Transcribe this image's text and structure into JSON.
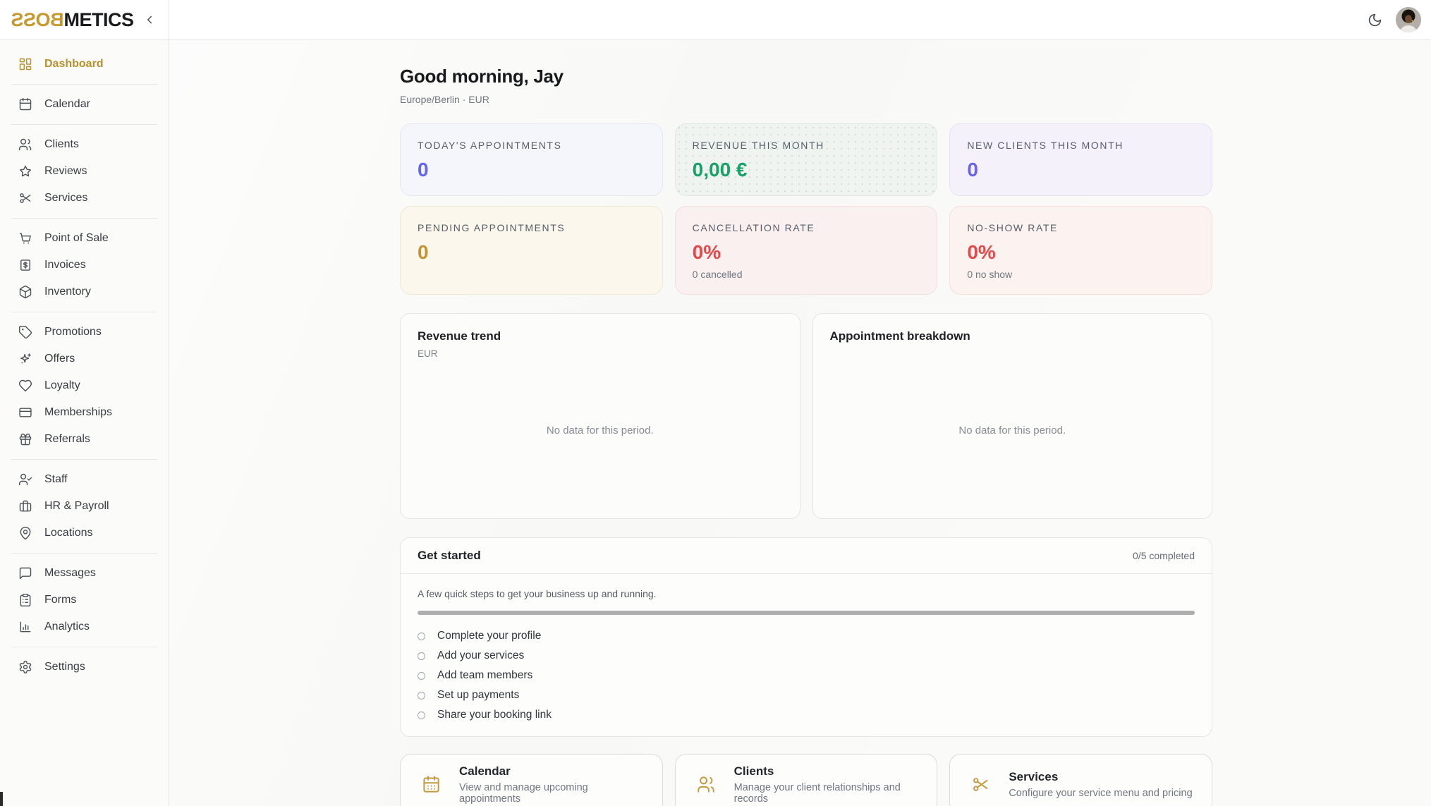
{
  "brand": {
    "gold": "BOSS",
    "dark": "METICS"
  },
  "sidebar": {
    "groups": [
      {
        "items": [
          {
            "label": "Dashboard",
            "active": true
          }
        ]
      },
      {
        "items": [
          {
            "label": "Calendar"
          }
        ]
      },
      {
        "items": [
          {
            "label": "Clients"
          },
          {
            "label": "Reviews"
          },
          {
            "label": "Services"
          }
        ]
      },
      {
        "items": [
          {
            "label": "Point of Sale"
          },
          {
            "label": "Invoices"
          },
          {
            "label": "Inventory"
          }
        ]
      },
      {
        "items": [
          {
            "label": "Promotions"
          },
          {
            "label": "Offers"
          },
          {
            "label": "Loyalty"
          },
          {
            "label": "Memberships"
          },
          {
            "label": "Referrals"
          }
        ]
      },
      {
        "items": [
          {
            "label": "Staff"
          },
          {
            "label": "HR & Payroll"
          },
          {
            "label": "Locations"
          }
        ]
      },
      {
        "items": [
          {
            "label": "Messages"
          },
          {
            "label": "Forms"
          },
          {
            "label": "Analytics"
          }
        ]
      },
      {
        "items": [
          {
            "label": "Settings"
          }
        ]
      }
    ]
  },
  "header": {
    "greeting": "Good morning, Jay",
    "meta": "Europe/Berlin · EUR"
  },
  "stats": [
    {
      "label": "TODAY'S APPOINTMENTS",
      "value": "0"
    },
    {
      "label": "REVENUE THIS MONTH",
      "value": "0,00 €"
    },
    {
      "label": "NEW CLIENTS THIS MONTH",
      "value": "0"
    },
    {
      "label": "PENDING APPOINTMENTS",
      "value": "0"
    },
    {
      "label": "CANCELLATION RATE",
      "value": "0%",
      "sub": "0 cancelled"
    },
    {
      "label": "NO-SHOW RATE",
      "value": "0%",
      "sub": "0 no show"
    }
  ],
  "charts": [
    {
      "title": "Revenue trend",
      "subtitle": "EUR",
      "empty_text": "No data for this period."
    },
    {
      "title": "Appointment breakdown",
      "empty_text": "No data for this period."
    }
  ],
  "get_started": {
    "title": "Get started",
    "progress_label": "0/5 completed",
    "progress_percent": 0,
    "description": "A few quick steps to get your business up and running.",
    "steps": [
      "Complete your profile",
      "Add your services",
      "Add team members",
      "Set up payments",
      "Share your booking link"
    ]
  },
  "quick_links": [
    {
      "title": "Calendar",
      "description": "View and manage upcoming appointments"
    },
    {
      "title": "Clients",
      "description": "Manage your client relationships and records"
    },
    {
      "title": "Services",
      "description": "Configure your service menu and pricing"
    }
  ],
  "icons": {
    "topbar": [
      "moon-icon",
      "avatar"
    ],
    "sidebar": [
      "dashboard-grid-icon",
      "calendar-icon",
      "users-icon",
      "star-icon",
      "scissors-icon",
      "cart-icon",
      "invoice-icon",
      "package-icon",
      "tag-icon",
      "sparkles-icon",
      "heart-icon",
      "credit-card-icon",
      "gift-icon",
      "user-check-icon",
      "briefcase-icon",
      "map-pin-icon",
      "chat-icon",
      "clipboard-icon",
      "bar-chart-icon",
      "gear-icon"
    ]
  },
  "colors": {
    "accent_gold": "#b8912f",
    "stat_appointments_value": "#6366f1",
    "stat_revenue_value": "#18a266",
    "stat_new_clients_value": "#6b63ec",
    "stat_pending_value": "#c29435",
    "stat_negative_value": "#e14b4b"
  }
}
